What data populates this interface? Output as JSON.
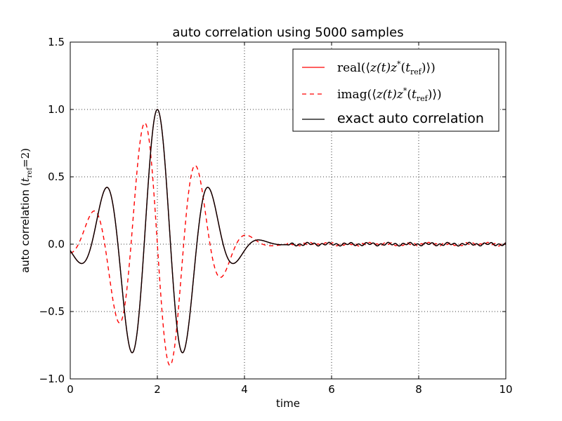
{
  "chart_data": {
    "type": "line",
    "title": "auto correlation using 5000 samples",
    "xlabel": "time",
    "ylabel_main": "auto correlation (",
    "ylabel_sub_t": "t",
    "ylabel_sub_ref": "ref",
    "ylabel_tail": "=2)",
    "xlim": [
      0,
      10
    ],
    "ylim": [
      -1.0,
      1.5
    ],
    "grid": true,
    "legend_position": "top-right",
    "x_ticks": [
      "0",
      "2",
      "4",
      "6",
      "8",
      "10"
    ],
    "y_ticks": [
      "−1.0",
      "−0.5",
      "0.0",
      "0.5",
      "1.0",
      "1.5"
    ],
    "series": [
      {
        "name": "real(⟨z(t)z*(tref)⟩)",
        "color": "#ff0000",
        "dash": "solid",
        "function": "exact"
      },
      {
        "name": "imag(⟨z(t)z*(tref)⟩)",
        "color": "#ff0000",
        "dash": "dashed",
        "function": "imag"
      },
      {
        "name": "exact auto correlation",
        "color": "#000000",
        "dash": "solid",
        "function": "exact"
      }
    ],
    "legend": {
      "real_prefix": "real",
      "imag_prefix": "imag",
      "inner": "z(t)z",
      "tref": "t",
      "ref": "ref",
      "exact": "exact auto correlation"
    }
  }
}
